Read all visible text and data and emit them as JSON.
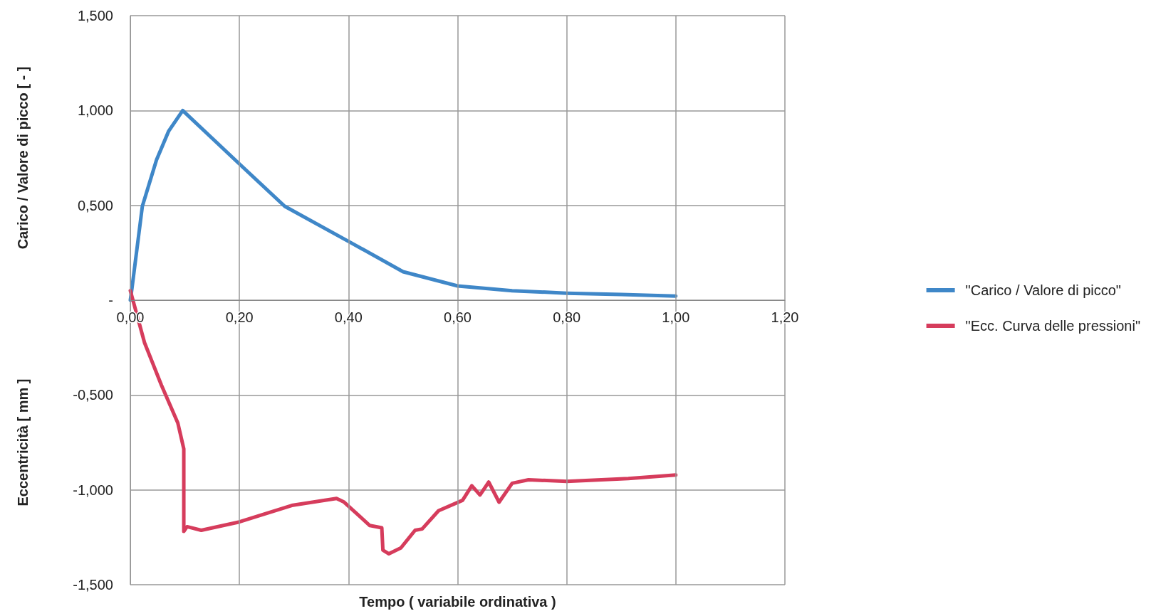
{
  "chart_data": {
    "type": "line",
    "xlabel": "Tempo ( variabile ordinativa )",
    "ylabel": "Carico / Valore di picco [ - ]",
    "annotations": [
      "Eccentricità [ mm ]"
    ],
    "xlim": [
      0,
      1.2
    ],
    "xticks": [
      {
        "value": 0,
        "label": "0,00"
      },
      {
        "value": 0.2,
        "label": "0,20"
      },
      {
        "value": 0.4,
        "label": "0,40"
      },
      {
        "value": 0.6,
        "label": "0,60"
      },
      {
        "value": 0.8,
        "label": "0,80"
      },
      {
        "value": 1.0,
        "label": "1,00"
      },
      {
        "value": 1.2,
        "label": "1,20"
      }
    ],
    "ylim": [
      -1.5,
      1.5
    ],
    "yticks": [
      {
        "value": -1.5,
        "label": "-1,500"
      },
      {
        "value": -1.0,
        "label": "-1,000"
      },
      {
        "value": -0.5,
        "label": "-0,500"
      },
      {
        "value": 0,
        "label": "-"
      },
      {
        "value": 0.5,
        "label": "0,500"
      },
      {
        "value": 1.0,
        "label": "1,000"
      },
      {
        "value": 1.5,
        "label": "1,500"
      }
    ],
    "grid": true,
    "legend": "right",
    "marker": "none",
    "line_style": "solid",
    "series": [
      {
        "name": "\"Carico / Valore di picco\"",
        "color": "#3f87c8",
        "x": [
          0,
          0.003,
          0.022,
          0.048,
          0.07,
          0.096,
          0.2,
          0.283,
          0.4,
          0.5,
          0.6,
          0.7,
          0.8,
          0.9,
          1.0
        ],
        "values": [
          0,
          0.063,
          0.495,
          0.74,
          0.89,
          1.0,
          0.718,
          0.495,
          0.31,
          0.15,
          0.075,
          0.05,
          0.037,
          0.03,
          0.022
        ]
      },
      {
        "name": "\"Ecc. Curva delle pressioni\"",
        "color": "#d63c5c",
        "x": [
          0,
          0.026,
          0.057,
          0.087,
          0.098,
          0.098,
          0.104,
          0.13,
          0.2,
          0.296,
          0.378,
          0.391,
          0.439,
          0.461,
          0.463,
          0.474,
          0.496,
          0.522,
          0.535,
          0.565,
          0.609,
          0.626,
          0.641,
          0.657,
          0.676,
          0.7,
          0.73,
          0.8,
          0.913,
          1.0
        ],
        "values": [
          0.05,
          -0.224,
          -0.448,
          -0.647,
          -0.784,
          -1.219,
          -1.194,
          -1.213,
          -1.169,
          -1.082,
          -1.045,
          -1.063,
          -1.188,
          -1.2,
          -1.318,
          -1.337,
          -1.306,
          -1.213,
          -1.206,
          -1.11,
          -1.055,
          -0.978,
          -1.027,
          -0.959,
          -1.065,
          -0.965,
          -0.947,
          -0.955,
          -0.94,
          -0.922
        ]
      }
    ]
  }
}
